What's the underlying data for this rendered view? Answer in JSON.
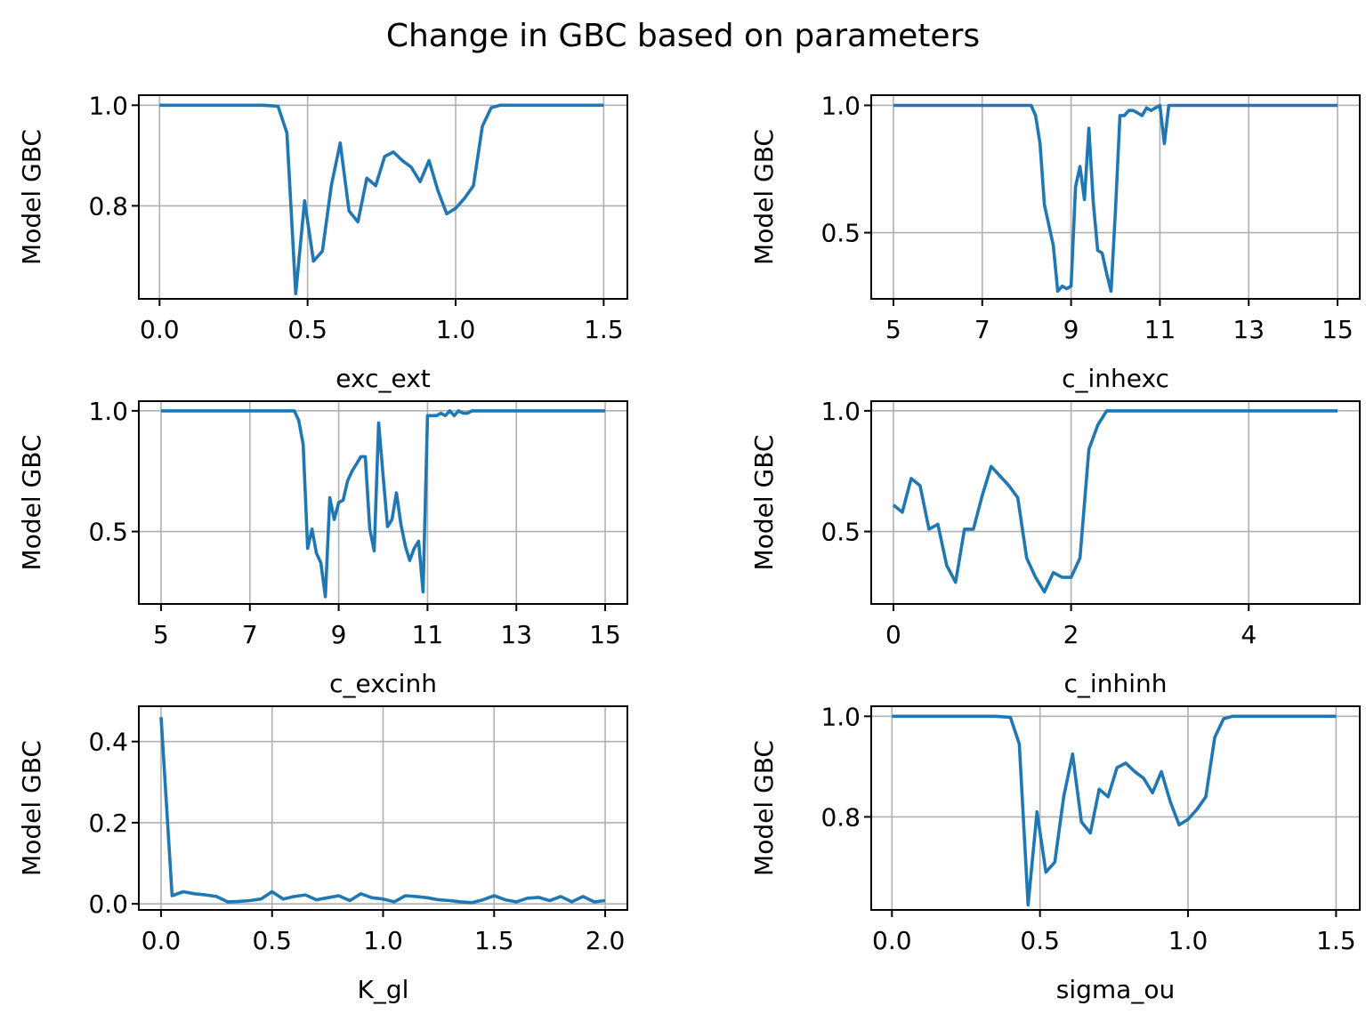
{
  "figure": {
    "title": "Change in GBC based on parameters"
  },
  "chart_data": [
    {
      "type": "line",
      "xlabel": "exc_ext",
      "ylabel": "Model GBC",
      "xlim": [
        -0.07,
        1.58
      ],
      "ylim": [
        0.615,
        1.02
      ],
      "xticks": [
        0.0,
        0.5,
        1.0,
        1.5
      ],
      "xtick_labels": [
        "0.0",
        "0.5",
        "1.0",
        "1.5"
      ],
      "yticks": [
        0.8,
        1.0
      ],
      "ytick_labels": [
        "0.8",
        "1.0"
      ],
      "grid": true,
      "color": "#1f77b4",
      "x": [
        0.0,
        0.05,
        0.1,
        0.2,
        0.3,
        0.35,
        0.4,
        0.43,
        0.46,
        0.49,
        0.52,
        0.55,
        0.58,
        0.61,
        0.64,
        0.67,
        0.7,
        0.73,
        0.76,
        0.79,
        0.82,
        0.85,
        0.88,
        0.91,
        0.94,
        0.97,
        1.0,
        1.03,
        1.06,
        1.09,
        1.12,
        1.15,
        1.2,
        1.3,
        1.4,
        1.5
      ],
      "y": [
        1.0,
        1.0,
        1.0,
        1.0,
        1.0,
        1.0,
        0.998,
        0.945,
        0.625,
        0.81,
        0.69,
        0.71,
        0.84,
        0.925,
        0.79,
        0.768,
        0.855,
        0.84,
        0.898,
        0.907,
        0.89,
        0.877,
        0.848,
        0.89,
        0.83,
        0.784,
        0.795,
        0.815,
        0.84,
        0.958,
        0.995,
        1.0,
        1.0,
        1.0,
        1.0,
        1.0
      ]
    },
    {
      "type": "line",
      "xlabel": "c_inhexc",
      "ylabel": "Model GBC",
      "xlim": [
        4.5,
        15.5
      ],
      "ylim": [
        0.24,
        1.04
      ],
      "xticks": [
        5,
        7,
        9,
        11,
        13,
        15
      ],
      "xtick_labels": [
        "5",
        "7",
        "9",
        "11",
        "13",
        "15"
      ],
      "yticks": [
        0.5,
        1.0
      ],
      "ytick_labels": [
        "0.5",
        "1.0"
      ],
      "grid": true,
      "color": "#1f77b4",
      "x": [
        5,
        6,
        7,
        7.5,
        7.9,
        8.0,
        8.1,
        8.2,
        8.3,
        8.4,
        8.5,
        8.6,
        8.7,
        8.8,
        8.9,
        9.0,
        9.1,
        9.2,
        9.3,
        9.4,
        9.5,
        9.6,
        9.7,
        9.8,
        9.9,
        10.0,
        10.1,
        10.2,
        10.3,
        10.4,
        10.5,
        10.6,
        10.7,
        10.8,
        10.9,
        11.0,
        11.1,
        11.2,
        11.5,
        12,
        13,
        14,
        15
      ],
      "y": [
        1.0,
        1.0,
        1.0,
        1.0,
        1.0,
        1.0,
        1.0,
        0.96,
        0.85,
        0.61,
        0.53,
        0.45,
        0.27,
        0.29,
        0.28,
        0.29,
        0.68,
        0.76,
        0.63,
        0.91,
        0.62,
        0.43,
        0.42,
        0.34,
        0.27,
        0.59,
        0.96,
        0.96,
        0.98,
        0.98,
        0.97,
        0.96,
        0.99,
        0.98,
        0.99,
        1.0,
        0.85,
        1.0,
        1.0,
        1.0,
        1.0,
        1.0,
        1.0
      ]
    },
    {
      "type": "line",
      "xlabel": "c_excinh",
      "ylabel": "Model GBC",
      "xlim": [
        4.5,
        15.5
      ],
      "ylim": [
        0.2,
        1.04
      ],
      "xticks": [
        5,
        7,
        9,
        11,
        13,
        15
      ],
      "xtick_labels": [
        "5",
        "7",
        "9",
        "11",
        "13",
        "15"
      ],
      "yticks": [
        0.5,
        1.0
      ],
      "ytick_labels": [
        "0.5",
        "1.0"
      ],
      "grid": true,
      "color": "#1f77b4",
      "x": [
        5,
        6,
        7,
        7.5,
        7.9,
        8.0,
        8.1,
        8.2,
        8.3,
        8.4,
        8.5,
        8.6,
        8.7,
        8.8,
        8.9,
        9.0,
        9.1,
        9.2,
        9.3,
        9.4,
        9.5,
        9.6,
        9.7,
        9.8,
        9.9,
        10.0,
        10.1,
        10.2,
        10.3,
        10.4,
        10.5,
        10.6,
        10.7,
        10.8,
        10.9,
        11.0,
        11.1,
        11.2,
        11.3,
        11.4,
        11.5,
        11.6,
        11.7,
        11.8,
        11.9,
        12.0,
        12.5,
        13,
        14,
        15
      ],
      "y": [
        1.0,
        1.0,
        1.0,
        1.0,
        1.0,
        1.0,
        0.96,
        0.86,
        0.43,
        0.51,
        0.41,
        0.37,
        0.23,
        0.64,
        0.55,
        0.62,
        0.63,
        0.71,
        0.75,
        0.78,
        0.81,
        0.81,
        0.51,
        0.42,
        0.95,
        0.73,
        0.52,
        0.55,
        0.66,
        0.53,
        0.44,
        0.38,
        0.43,
        0.46,
        0.25,
        0.98,
        0.98,
        0.98,
        0.99,
        0.98,
        1.0,
        0.98,
        1.0,
        0.99,
        0.99,
        1.0,
        1.0,
        1.0,
        1.0,
        1.0
      ]
    },
    {
      "type": "line",
      "xlabel": "c_inhinh",
      "ylabel": "Model GBC",
      "xlim": [
        -0.25,
        5.25
      ],
      "ylim": [
        0.2,
        1.04
      ],
      "xticks": [
        0,
        2,
        4
      ],
      "xtick_labels": [
        "0",
        "2",
        "4"
      ],
      "yticks": [
        0.5,
        1.0
      ],
      "ytick_labels": [
        "0.5",
        "1.0"
      ],
      "grid": true,
      "color": "#1f77b4",
      "x": [
        0,
        0.1,
        0.2,
        0.3,
        0.4,
        0.5,
        0.6,
        0.7,
        0.8,
        0.9,
        1.0,
        1.1,
        1.2,
        1.3,
        1.4,
        1.5,
        1.6,
        1.7,
        1.8,
        1.9,
        2.0,
        2.1,
        2.2,
        2.3,
        2.4,
        2.5,
        3,
        4,
        5
      ],
      "y": [
        0.61,
        0.58,
        0.72,
        0.69,
        0.51,
        0.53,
        0.36,
        0.29,
        0.51,
        0.51,
        0.65,
        0.77,
        0.73,
        0.69,
        0.64,
        0.39,
        0.31,
        0.25,
        0.33,
        0.31,
        0.31,
        0.39,
        0.84,
        0.94,
        1.0,
        1.0,
        1.0,
        1.0,
        1.0
      ]
    },
    {
      "type": "line",
      "xlabel": "K_gl",
      "ylabel": "Model GBC",
      "xlim": [
        -0.1,
        2.1
      ],
      "ylim": [
        -0.015,
        0.487
      ],
      "xticks": [
        0.0,
        0.5,
        1.0,
        1.5,
        2.0
      ],
      "xtick_labels": [
        "0.0",
        "0.5",
        "1.0",
        "1.5",
        "2.0"
      ],
      "yticks": [
        0.0,
        0.2,
        0.4
      ],
      "ytick_labels": [
        "0.0",
        "0.2",
        "0.4"
      ],
      "grid": true,
      "color": "#1f77b4",
      "x": [
        0.0,
        0.05,
        0.1,
        0.15,
        0.2,
        0.25,
        0.3,
        0.35,
        0.4,
        0.45,
        0.5,
        0.55,
        0.6,
        0.65,
        0.7,
        0.75,
        0.8,
        0.85,
        0.9,
        0.95,
        1.0,
        1.05,
        1.1,
        1.15,
        1.2,
        1.25,
        1.3,
        1.35,
        1.4,
        1.45,
        1.5,
        1.55,
        1.6,
        1.65,
        1.7,
        1.75,
        1.8,
        1.85,
        1.9,
        1.95,
        2.0
      ],
      "y": [
        0.46,
        0.02,
        0.03,
        0.025,
        0.022,
        0.018,
        0.005,
        0.006,
        0.008,
        0.012,
        0.03,
        0.012,
        0.018,
        0.022,
        0.01,
        0.015,
        0.02,
        0.008,
        0.025,
        0.015,
        0.012,
        0.005,
        0.02,
        0.018,
        0.015,
        0.01,
        0.008,
        0.005,
        0.003,
        0.01,
        0.02,
        0.01,
        0.005,
        0.014,
        0.016,
        0.008,
        0.018,
        0.005,
        0.018,
        0.005,
        0.008
      ]
    },
    {
      "type": "line",
      "xlabel": "sigma_ou",
      "ylabel": "Model GBC",
      "xlim": [
        -0.07,
        1.58
      ],
      "ylim": [
        0.615,
        1.02
      ],
      "xticks": [
        0.0,
        0.5,
        1.0,
        1.5
      ],
      "xtick_labels": [
        "0.0",
        "0.5",
        "1.0",
        "1.5"
      ],
      "yticks": [
        0.8,
        1.0
      ],
      "ytick_labels": [
        "0.8",
        "1.0"
      ],
      "grid": true,
      "color": "#1f77b4",
      "x": [
        0.0,
        0.05,
        0.1,
        0.2,
        0.3,
        0.35,
        0.4,
        0.43,
        0.46,
        0.49,
        0.52,
        0.55,
        0.58,
        0.61,
        0.64,
        0.67,
        0.7,
        0.73,
        0.76,
        0.79,
        0.82,
        0.85,
        0.88,
        0.91,
        0.94,
        0.97,
        1.0,
        1.03,
        1.06,
        1.09,
        1.12,
        1.15,
        1.2,
        1.3,
        1.4,
        1.5
      ],
      "y": [
        1.0,
        1.0,
        1.0,
        1.0,
        1.0,
        1.0,
        0.998,
        0.945,
        0.625,
        0.81,
        0.69,
        0.71,
        0.84,
        0.925,
        0.79,
        0.768,
        0.855,
        0.84,
        0.898,
        0.907,
        0.89,
        0.877,
        0.848,
        0.89,
        0.83,
        0.784,
        0.795,
        0.815,
        0.84,
        0.958,
        0.995,
        1.0,
        1.0,
        1.0,
        1.0,
        1.0
      ]
    }
  ]
}
